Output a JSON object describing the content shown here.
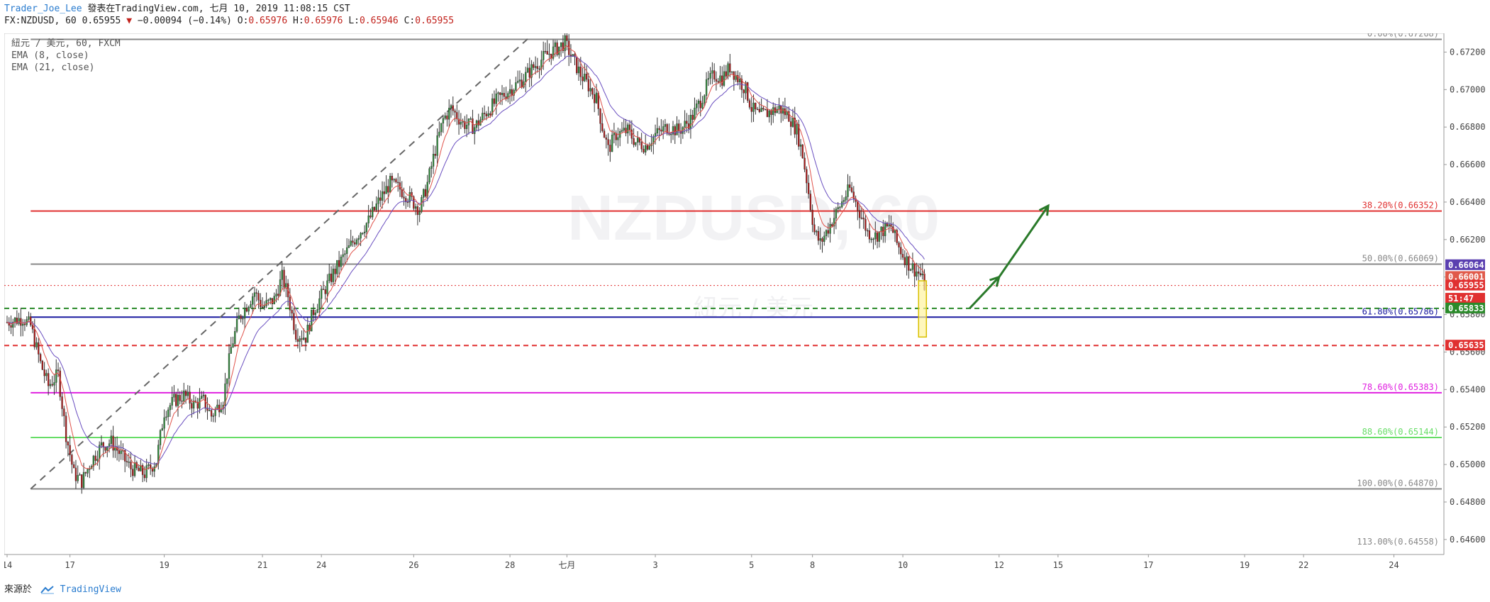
{
  "header": {
    "author": "Trader_Joe_Lee",
    "published": "發表在TradingView.com, 七月 10, 2019 11:08:15 CST",
    "symbol_line": "FX:NZDUSD, 60 0.65955",
    "change": "−0.00094 (−0.14%)",
    "open_label": "O:",
    "open": "0.65976",
    "high_label": "H:",
    "high": "0.65976",
    "low_label": "L:",
    "low": "0.65946",
    "close_label": "C:",
    "close": "0.65955",
    "down_color": "#c2221c"
  },
  "legend": {
    "series": "紐元 / 美元, 60, FXCM",
    "ema8": "EMA (8, close)",
    "ema21": "EMA (21, close)",
    "ema8_color": "#e0524a",
    "ema21_color": "#6a4fc0"
  },
  "footer": {
    "source_label": "來源於",
    "brand": "TradingView"
  },
  "chart_data": {
    "type": "candlestick",
    "symbol": "NZDUSD",
    "timeframe": "60",
    "watermark": "NZDUSD, 60",
    "watermark_sub": "紐元 / 美元",
    "ylim": [
      0.6452,
      0.673
    ],
    "y_ticks": [
      "0.67200",
      "0.67000",
      "0.66800",
      "0.66600",
      "0.66400",
      "0.66200",
      "0.66000",
      "0.65800",
      "0.65600",
      "0.65400",
      "0.65200",
      "0.65000",
      "0.64800",
      "0.64600"
    ],
    "x_ticks": [
      {
        "label": "14",
        "hour": 0
      },
      {
        "label": "17",
        "hour": 32
      },
      {
        "label": "19",
        "hour": 80
      },
      {
        "label": "21",
        "hour": 130
      },
      {
        "label": "24",
        "hour": 160
      },
      {
        "label": "26",
        "hour": 207
      },
      {
        "label": "28",
        "hour": 256
      },
      {
        "label": "七月",
        "hour": 285
      },
      {
        "label": "3",
        "hour": 330
      },
      {
        "label": "5",
        "hour": 379
      },
      {
        "label": "8",
        "hour": 410
      },
      {
        "label": "10",
        "hour": 456
      },
      {
        "label": "12",
        "hour": 505
      },
      {
        "label": "15",
        "hour": 535
      },
      {
        "label": "17",
        "hour": 581
      },
      {
        "label": "19",
        "hour": 630
      },
      {
        "label": "22",
        "hour": 660
      },
      {
        "label": "24",
        "hour": 706
      }
    ],
    "x_range_hours": [
      0,
      730
    ],
    "price_path": [
      [
        0,
        0.6576
      ],
      [
        8,
        0.6578
      ],
      [
        12,
        0.6574
      ],
      [
        17,
        0.6554
      ],
      [
        21,
        0.6542
      ],
      [
        26,
        0.6548
      ],
      [
        30,
        0.6516
      ],
      [
        34,
        0.6495
      ],
      [
        38,
        0.6491
      ],
      [
        43,
        0.6502
      ],
      [
        48,
        0.651
      ],
      [
        53,
        0.6512
      ],
      [
        58,
        0.6505
      ],
      [
        63,
        0.6498
      ],
      [
        70,
        0.6495
      ],
      [
        76,
        0.6502
      ],
      [
        80,
        0.6528
      ],
      [
        85,
        0.6534
      ],
      [
        90,
        0.6537
      ],
      [
        95,
        0.6532
      ],
      [
        100,
        0.6534
      ],
      [
        104,
        0.6526
      ],
      [
        110,
        0.6535
      ],
      [
        114,
        0.6562
      ],
      [
        118,
        0.6578
      ],
      [
        122,
        0.6585
      ],
      [
        126,
        0.6592
      ],
      [
        130,
        0.6584
      ],
      [
        136,
        0.6588
      ],
      [
        140,
        0.66
      ],
      [
        143,
        0.659
      ],
      [
        147,
        0.657
      ],
      [
        152,
        0.6568
      ],
      [
        156,
        0.6582
      ],
      [
        160,
        0.659
      ],
      [
        166,
        0.6602
      ],
      [
        172,
        0.6612
      ],
      [
        178,
        0.6622
      ],
      [
        184,
        0.663
      ],
      [
        190,
        0.6642
      ],
      [
        195,
        0.665
      ],
      [
        200,
        0.6647
      ],
      [
        205,
        0.6642
      ],
      [
        210,
        0.6636
      ],
      [
        214,
        0.665
      ],
      [
        218,
        0.6668
      ],
      [
        222,
        0.6684
      ],
      [
        226,
        0.669
      ],
      [
        232,
        0.6682
      ],
      [
        238,
        0.668
      ],
      [
        244,
        0.6688
      ],
      [
        250,
        0.6695
      ],
      [
        256,
        0.67
      ],
      [
        262,
        0.6705
      ],
      [
        268,
        0.6712
      ],
      [
        274,
        0.6718
      ],
      [
        280,
        0.6722
      ],
      [
        284,
        0.6725
      ],
      [
        288,
        0.6716
      ],
      [
        292,
        0.6708
      ],
      [
        296,
        0.6702
      ],
      [
        300,
        0.6695
      ],
      [
        303,
        0.668
      ],
      [
        306,
        0.6668
      ],
      [
        310,
        0.6676
      ],
      [
        316,
        0.6678
      ],
      [
        320,
        0.6672
      ],
      [
        325,
        0.667
      ],
      [
        330,
        0.6676
      ],
      [
        336,
        0.668
      ],
      [
        342,
        0.6678
      ],
      [
        348,
        0.6684
      ],
      [
        353,
        0.6694
      ],
      [
        357,
        0.6704
      ],
      [
        360,
        0.6708
      ],
      [
        364,
        0.6706
      ],
      [
        368,
        0.6712
      ],
      [
        372,
        0.6706
      ],
      [
        376,
        0.67
      ],
      [
        379,
        0.669
      ],
      [
        383,
        0.6686
      ],
      [
        388,
        0.6688
      ],
      [
        393,
        0.669
      ],
      [
        398,
        0.6686
      ],
      [
        402,
        0.6678
      ],
      [
        405,
        0.6665
      ],
      [
        407,
        0.6652
      ],
      [
        409,
        0.6638
      ],
      [
        411,
        0.6624
      ],
      [
        414,
        0.6618
      ],
      [
        418,
        0.6626
      ],
      [
        422,
        0.6634
      ],
      [
        426,
        0.6642
      ],
      [
        429,
        0.6647
      ],
      [
        432,
        0.664
      ],
      [
        435,
        0.6632
      ],
      [
        438,
        0.6624
      ],
      [
        442,
        0.6622
      ],
      [
        446,
        0.6625
      ],
      [
        450,
        0.6627
      ],
      [
        453,
        0.6618
      ],
      [
        456,
        0.6612
      ],
      [
        459,
        0.6607
      ],
      [
        462,
        0.6604
      ],
      [
        465,
        0.6601
      ],
      [
        467,
        0.65955
      ]
    ],
    "ema8_path_offset": 0.0006,
    "ema21_path_offset": 0.0012,
    "levels": [
      {
        "label": "0.00%(0.67268)",
        "price": 0.67268,
        "color": "#888888",
        "style": "solid"
      },
      {
        "label": "38.20%(0.66352)",
        "price": 0.66352,
        "color": "#e03030",
        "style": "solid"
      },
      {
        "label": "50.00%(0.66069)",
        "price": 0.66069,
        "color": "#888888",
        "style": "solid"
      },
      {
        "label": "61.80%(0.65786)",
        "price": 0.65786,
        "color": "#1a1aa0",
        "style": "solid"
      },
      {
        "label": "78.60%(0.65383)",
        "price": 0.65383,
        "color": "#e020e0",
        "style": "solid"
      },
      {
        "label": "88.60%(0.65144)",
        "price": 0.65144,
        "color": "#66dd66",
        "style": "solid"
      },
      {
        "label": "100.00%(0.64870)",
        "price": 0.6487,
        "color": "#888888",
        "style": "solid"
      },
      {
        "label": "113.00%(0.64558)",
        "price": 0.64558,
        "color": "#888888",
        "style": "none"
      }
    ],
    "hlines": [
      {
        "price": 0.65955,
        "color": "#e03030",
        "style": "dotted"
      },
      {
        "price": 0.65833,
        "color": "#2a8a2a",
        "style": "dashed"
      },
      {
        "price": 0.65635,
        "color": "#e03030",
        "style": "dashed"
      }
    ],
    "price_labels": [
      {
        "text": "0.66064",
        "price": 0.66064,
        "bg": "#5a3fb0"
      },
      {
        "text": "0.66001",
        "price": 0.66001,
        "bg": "#e05a4a"
      },
      {
        "text": "0.65955",
        "price": 0.65955,
        "bg": "#e03030"
      },
      {
        "text": "51:47",
        "price": 0.65885,
        "bg": "#e03030"
      },
      {
        "text": "0.65833",
        "price": 0.65833,
        "bg": "#2a8a2a"
      },
      {
        "text": "0.65635",
        "price": 0.65635,
        "bg": "#e03030"
      }
    ],
    "trend_dashed": {
      "from": [
        12,
        0.6487
      ],
      "to": [
        265,
        0.6727
      ],
      "color": "#666666"
    },
    "target_box": {
      "x0": 464,
      "x1": 468,
      "y0": 0.6598,
      "y1": 0.6568,
      "color": "#d9c000",
      "fill": "#fff3a0"
    },
    "arrow": {
      "points": [
        [
          490,
          0.65833
        ],
        [
          505,
          0.66
        ],
        [
          530,
          0.6638
        ]
      ],
      "color": "#2a7a2a"
    }
  }
}
